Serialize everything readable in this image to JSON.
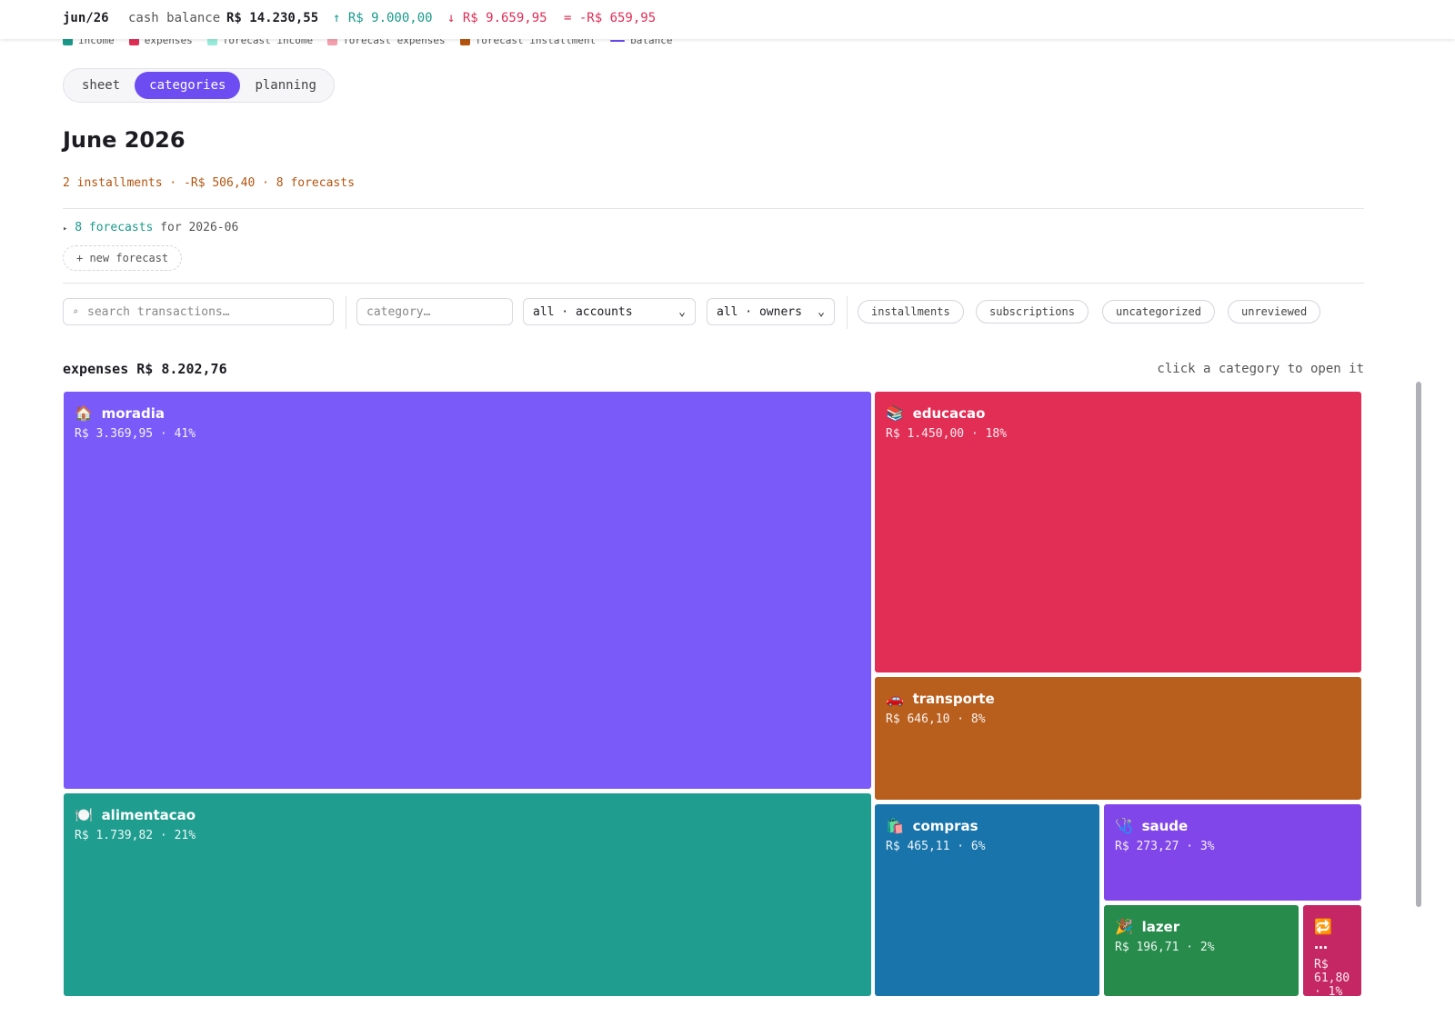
{
  "header": {
    "month": "jun/26",
    "cash_label": "cash balance",
    "cash_value": "R$ 14.230,55",
    "income": "↑ R$ 9.000,00",
    "expenses": "↓ R$ 9.659,95",
    "net": "= -R$ 659,95"
  },
  "legend": [
    "income",
    "expenses",
    "forecast income",
    "forecast expenses",
    "forecast installment",
    "balance"
  ],
  "tabs": [
    "sheet",
    "categories",
    "planning"
  ],
  "title": "June 2026",
  "summary": "2 installments · -R$ 506,40 · 8 forecasts",
  "forecasts": {
    "arrow": "▸",
    "count": "8 forecasts",
    "suffix": "for 2026-06",
    "new_button": "+ new forecast"
  },
  "filters": {
    "search": "search transactions…",
    "category": "category…",
    "accounts": "all · accounts",
    "owners": "all · owners",
    "chips": [
      "installments",
      "subscriptions",
      "uncategorized",
      "unreviewed"
    ]
  },
  "treemap": {
    "title": "expenses R$ 8.202,76",
    "hint": "click a category to open it",
    "tiles": [
      {
        "icon": "🏠",
        "name": "moradia",
        "amount": "R$ 3.369,95 · 41%"
      },
      {
        "icon": "📚",
        "name": "educacao",
        "amount": "R$ 1.450,00 · 18%"
      },
      {
        "icon": "🚗",
        "name": "transporte",
        "amount": "R$ 646,10 · 8%"
      },
      {
        "icon": "🍽️",
        "name": "alimentacao",
        "amount": "R$ 1.739,82 · 21%"
      },
      {
        "icon": "🛍️",
        "name": "compras",
        "amount": "R$ 465,11 · 6%"
      },
      {
        "icon": "🩺",
        "name": "saude",
        "amount": "R$ 273,27 · 3%"
      },
      {
        "icon": "🎉",
        "name": "lazer",
        "amount": "R$ 196,71 · 2%"
      },
      {
        "icon": "🔁",
        "name": "…",
        "amount": "R$ 61,80 · 1%"
      }
    ]
  }
}
